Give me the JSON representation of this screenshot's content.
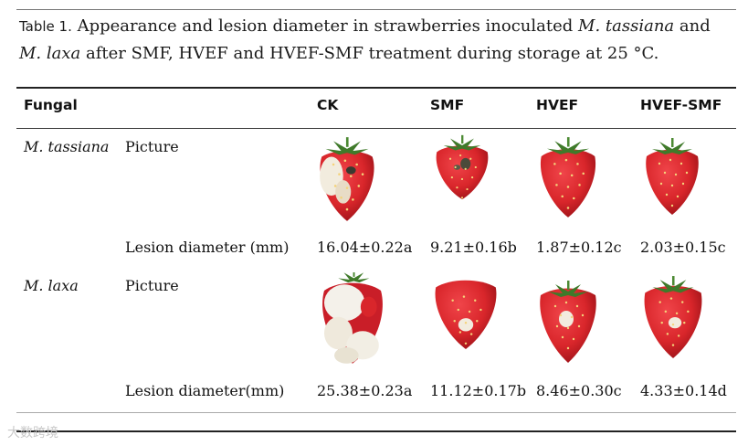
{
  "caption": {
    "label": "Table 1.",
    "text_1": "Appearance and lesion diameter in strawberries inoculated ",
    "species_1": "M. tassiana",
    "text_2": " and ",
    "species_2": "M. laxa",
    "text_3": " after SMF, HVEF and HVEF-SMF treatment during storage at 25 °C."
  },
  "columns": [
    "Fungal",
    "CK",
    "SMF",
    "HVEF",
    "HVEF-SMF"
  ],
  "rows": [
    {
      "fungal": "M. tassiana",
      "picture_label": "Picture",
      "pictures": [
        "strawberry-icon",
        "strawberry-icon",
        "strawberry-icon",
        "strawberry-icon"
      ],
      "diameter_label": "Lesion diameter (mm)",
      "values": [
        "16.04±0.22a",
        "9.21±0.16b",
        "1.87±0.12c",
        "2.03±0.15c"
      ]
    },
    {
      "fungal": "M. laxa",
      "picture_label": "Picture",
      "pictures": [
        "moldy-strawberry-icon",
        "strawberry-icon",
        "strawberry-icon",
        "strawberry-icon"
      ],
      "diameter_label": "Lesion diameter(mm)",
      "values": [
        "25.38±0.23a",
        "11.12±0.17b",
        "8.46±0.30c",
        "4.33±0.14d"
      ]
    }
  ],
  "colors": {
    "berry": "#d9262b",
    "berry_dark": "#a8141b",
    "leaf": "#3f7a2a",
    "lesion": "#f2ecde",
    "mold": "#f4f1ea"
  },
  "watermark": "大数跨境"
}
